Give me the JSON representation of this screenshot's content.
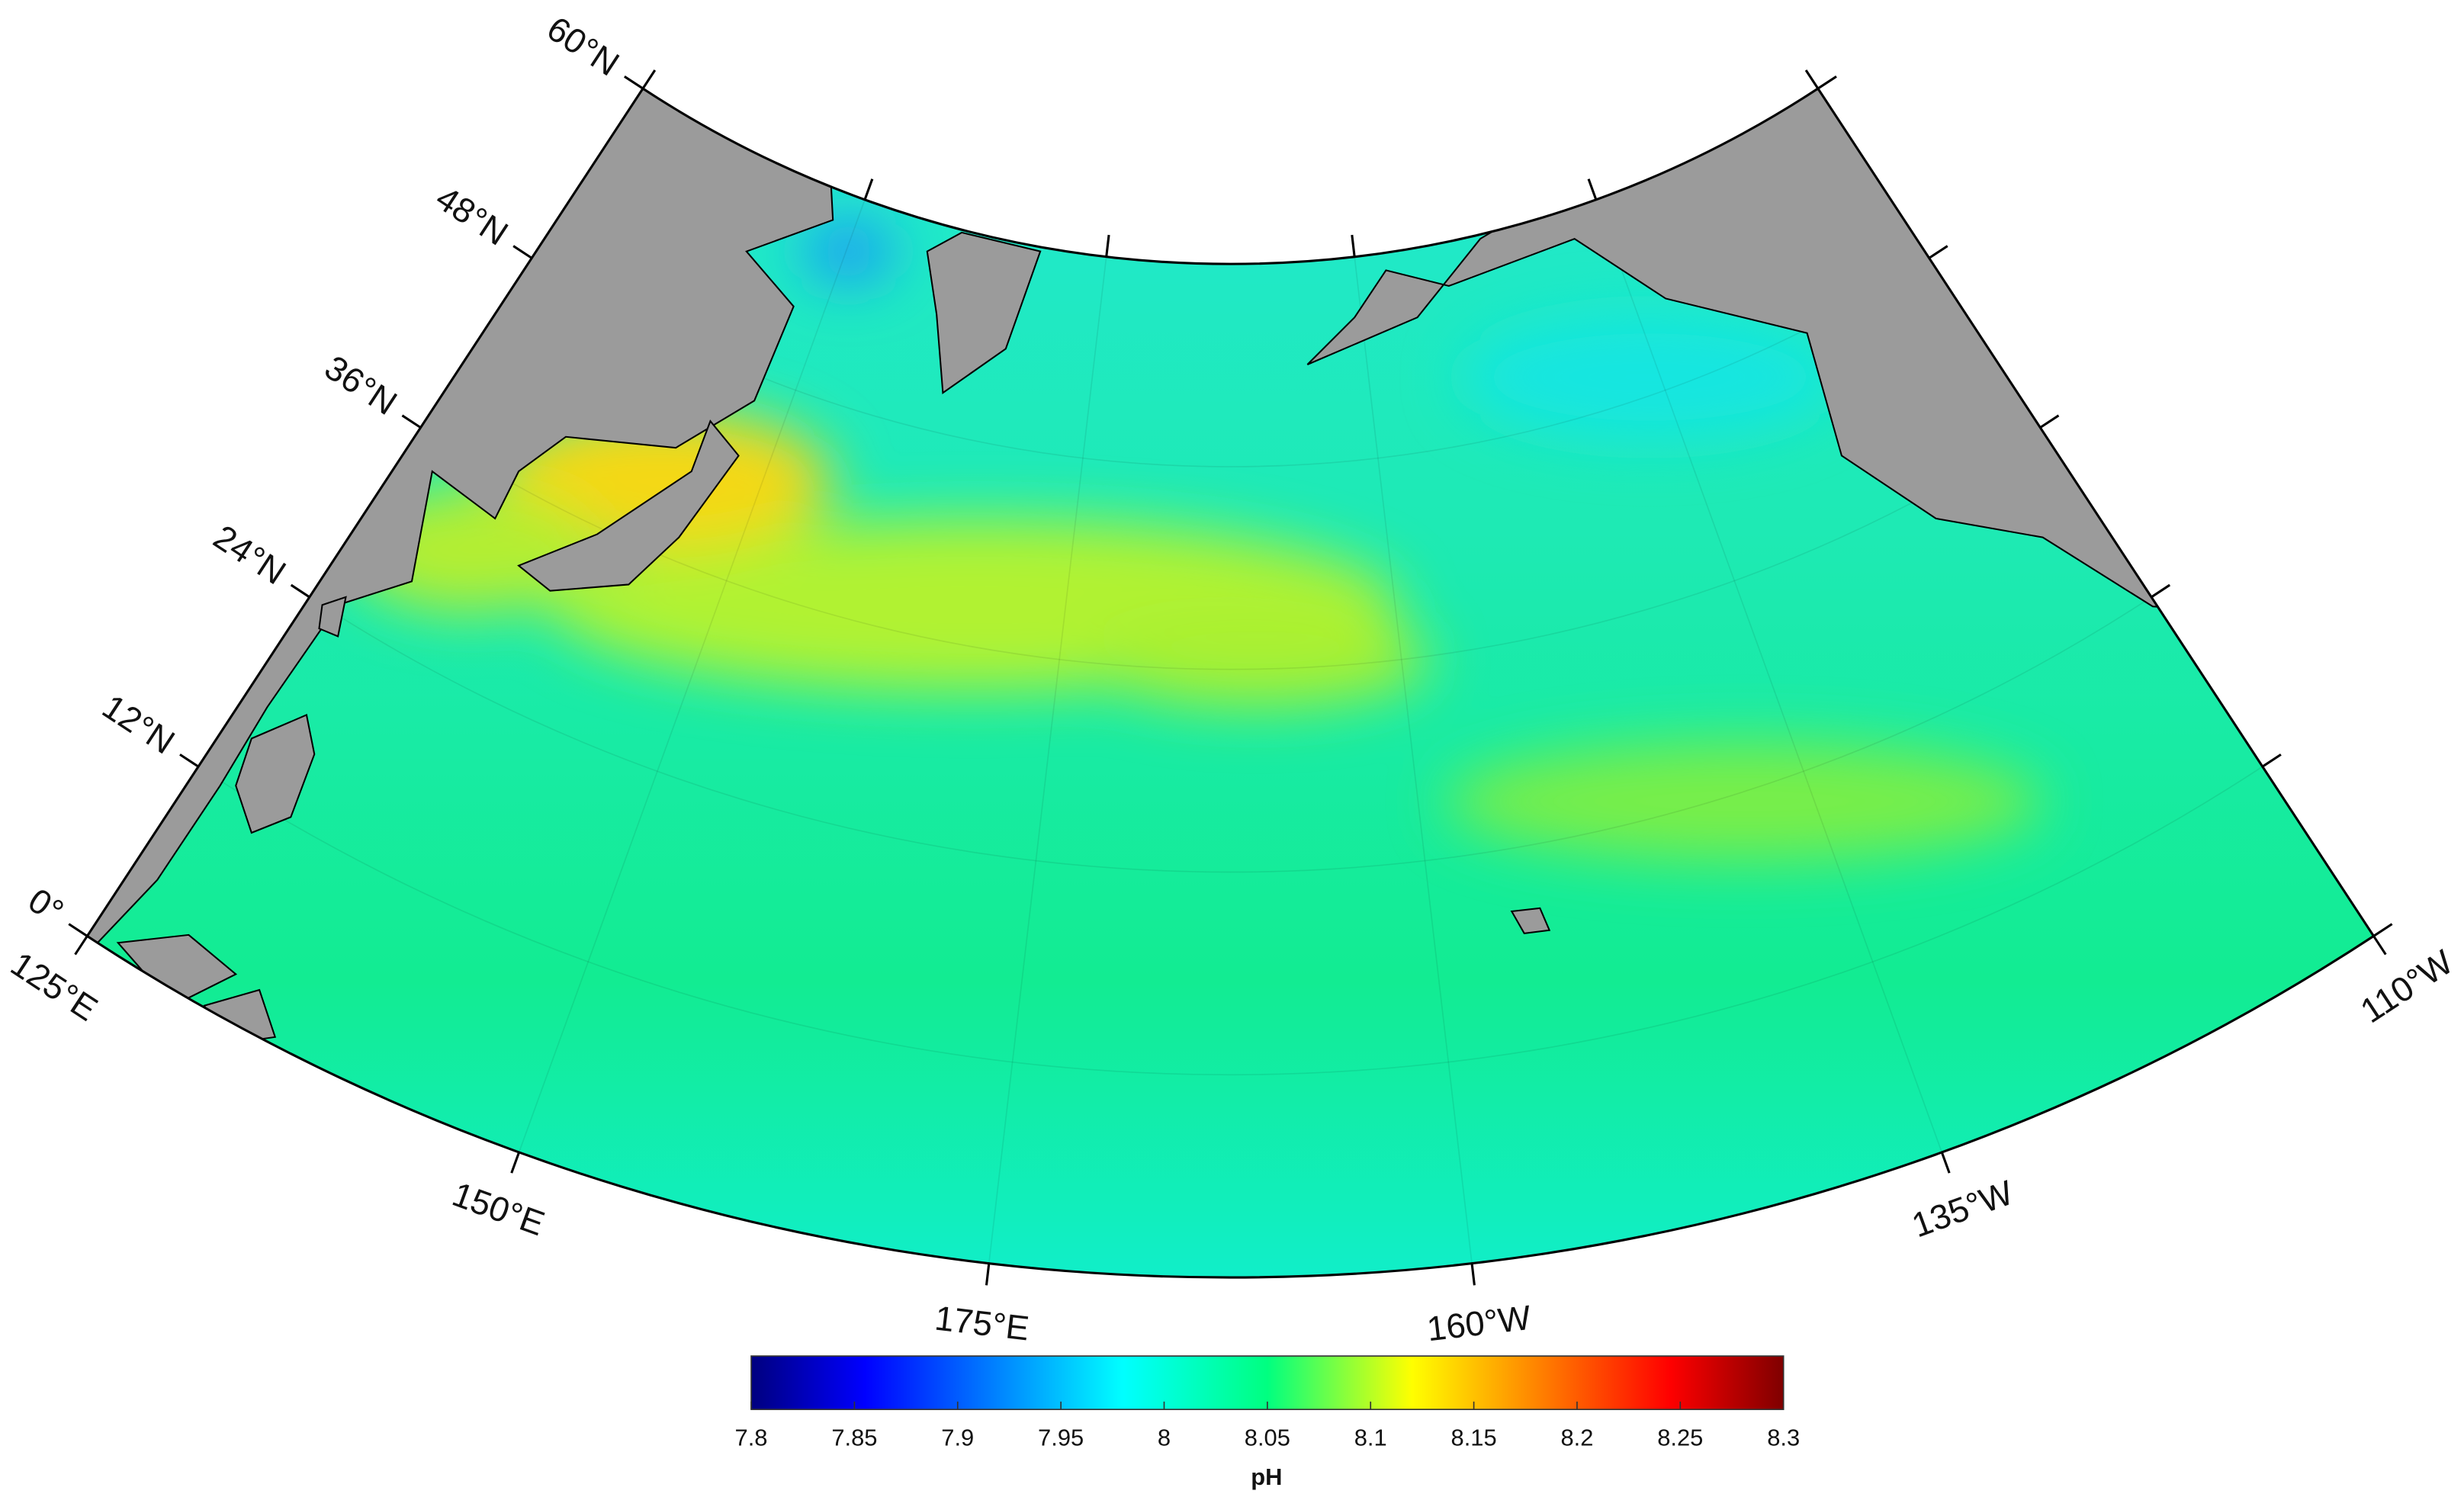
{
  "map": {
    "lat_lim": [
      0,
      60
    ],
    "lon_lim": [
      125,
      -110
    ],
    "lat_ticks": [
      {
        "value": 60,
        "label": "60°N"
      },
      {
        "value": 48,
        "label": "48°N"
      },
      {
        "value": 36,
        "label": "36°N"
      },
      {
        "value": 24,
        "label": "24°N"
      },
      {
        "value": 12,
        "label": "12°N"
      },
      {
        "value": 0,
        "label": "0°"
      }
    ],
    "lon_ticks": [
      {
        "value": 125,
        "label": "125°E"
      },
      {
        "value": 150,
        "label": "150°E"
      },
      {
        "value": 175,
        "label": "175°E"
      },
      {
        "value": -160,
        "label": "160°W"
      },
      {
        "value": -135,
        "label": "135°W"
      },
      {
        "value": -110,
        "label": "110°W"
      }
    ],
    "colorbar": {
      "label": "pH",
      "lim": [
        7.8,
        8.3
      ],
      "ticks": [
        7.8,
        7.85,
        7.9,
        7.95,
        8,
        8.05,
        8.1,
        8.15,
        8.2,
        8.25,
        8.3
      ]
    }
  }
}
